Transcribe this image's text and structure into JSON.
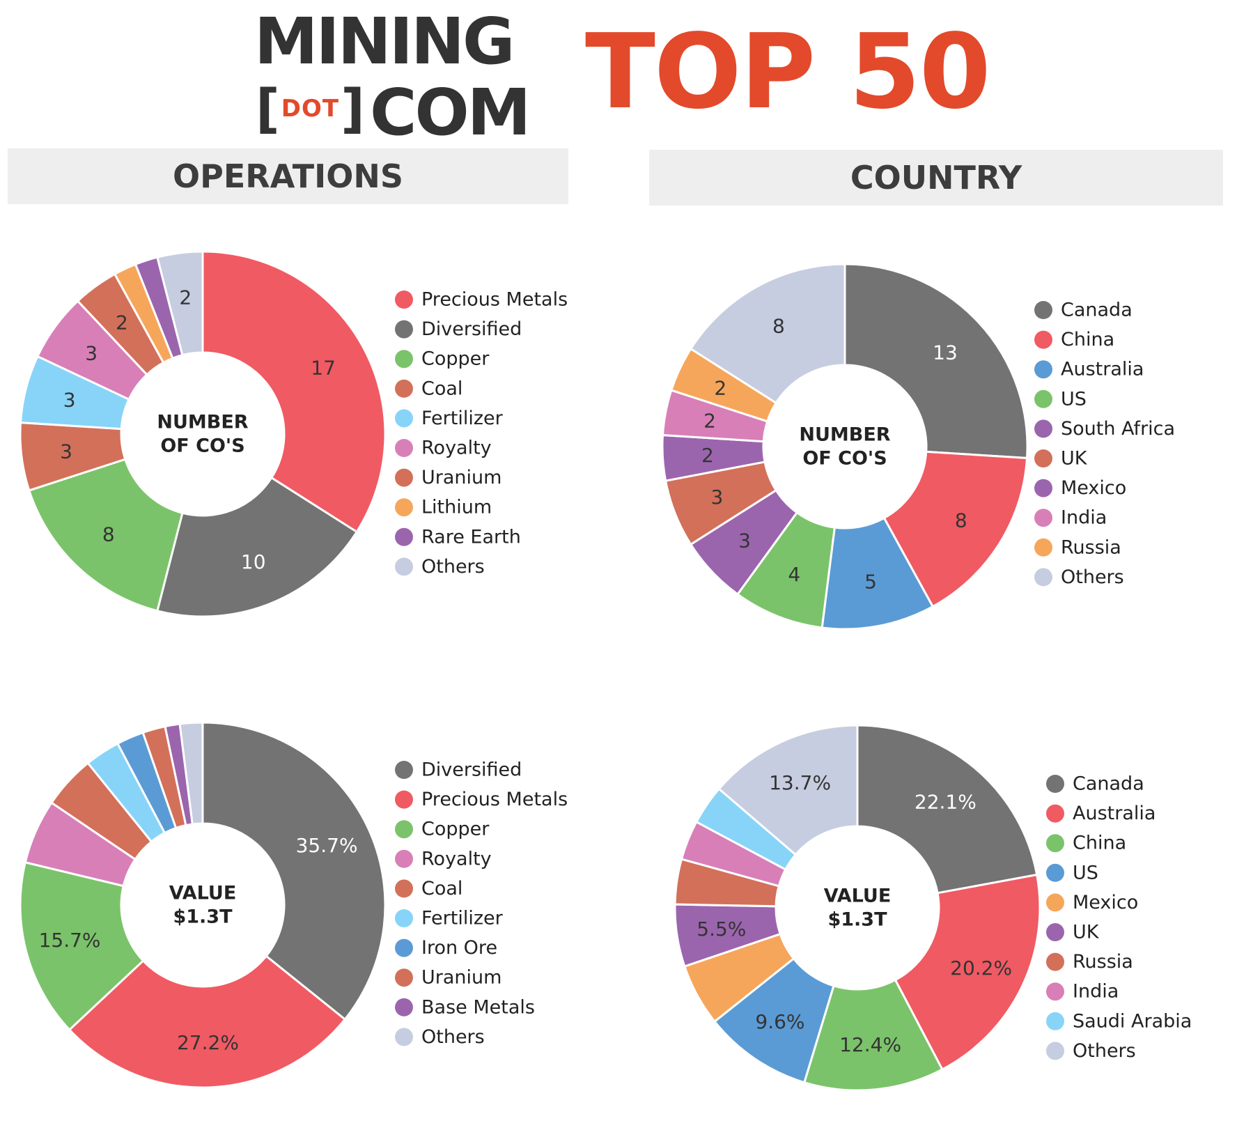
{
  "header": {
    "logo_line1": "MINING",
    "logo_bracket_left": "[",
    "logo_dot": "DOT",
    "logo_bracket_right": "]",
    "logo_line2": "COM",
    "title": "TOP 50"
  },
  "sections": {
    "operations": "OPERATIONS",
    "country": "COUNTRY"
  },
  "chart_data": [
    {
      "type": "pie",
      "style": "donut",
      "center_label": [
        "NUMBER",
        "OF CO'S"
      ],
      "categories": [
        "Precious Metals",
        "Diversified",
        "Copper",
        "Coal",
        "Fertilizer",
        "Royalty",
        "Uranium",
        "Lithium",
        "Rare Earth",
        "Others"
      ],
      "values": [
        17,
        10,
        8,
        3,
        3,
        3,
        2,
        1,
        1,
        2
      ],
      "labels": [
        "17",
        "10",
        "8",
        "3",
        "3",
        "3",
        "2",
        "",
        "",
        "2"
      ],
      "colors": [
        "#f05a63",
        "#737373",
        "#7bc36a",
        "#d3705a",
        "#87d4f8",
        "#d87fb8",
        "#d3705a",
        "#f6a65a",
        "#9b65ae",
        "#c6cde0"
      ],
      "label_colors": [
        "#333333",
        "#ffffff",
        "#333333",
        "#333333",
        "#333333",
        "#333333",
        "#333333",
        "#333333",
        "#333333",
        "#333333"
      ]
    },
    {
      "type": "pie",
      "style": "donut",
      "center_label": [
        "NUMBER",
        "OF CO'S"
      ],
      "categories": [
        "Canada",
        "China",
        "Australia",
        "US",
        "South Africa",
        "UK",
        "Mexico",
        "India",
        "Russia",
        "Others"
      ],
      "values": [
        13,
        8,
        5,
        4,
        3,
        3,
        2,
        2,
        2,
        8
      ],
      "labels": [
        "13",
        "8",
        "5",
        "4",
        "3",
        "3",
        "2",
        "2",
        "2",
        "8"
      ],
      "colors": [
        "#737373",
        "#f05a63",
        "#5b9bd5",
        "#7bc36a",
        "#9b65ae",
        "#d3705a",
        "#9b65ae",
        "#d87fb8",
        "#f6a65a",
        "#c6cde0"
      ],
      "label_colors": [
        "#ffffff",
        "#333333",
        "#333333",
        "#333333",
        "#333333",
        "#333333",
        "#333333",
        "#333333",
        "#333333",
        "#333333"
      ]
    },
    {
      "type": "pie",
      "style": "donut",
      "center_label": [
        "VALUE",
        "$1.3T"
      ],
      "categories": [
        "Diversified",
        "Precious Metals",
        "Copper",
        "Royalty",
        "Coal",
        "Fertilizer",
        "Iron Ore",
        "Uranium",
        "Base Metals",
        "Others"
      ],
      "values": [
        35.7,
        27.2,
        15.7,
        5.7,
        4.7,
        3.1,
        2.4,
        2.0,
        1.3,
        2.0
      ],
      "labels": [
        "35.7%",
        "27.2%",
        "15.7%",
        "",
        "",
        "",
        "",
        "",
        "",
        ""
      ],
      "colors": [
        "#737373",
        "#f05a63",
        "#7bc36a",
        "#d87fb8",
        "#d3705a",
        "#87d4f8",
        "#5b9bd5",
        "#d3705a",
        "#9b65ae",
        "#c6cde0"
      ],
      "label_colors": [
        "#ffffff",
        "#333333",
        "#333333",
        "#333333",
        "#333333",
        "#333333",
        "#333333",
        "#333333",
        "#333333",
        "#333333"
      ]
    },
    {
      "type": "pie",
      "style": "donut",
      "center_label": [
        "VALUE",
        "$1.3T"
      ],
      "categories": [
        "Canada",
        "Australia",
        "China",
        "US",
        "Mexico",
        "UK",
        "Russia",
        "India",
        "Saudi Arabia",
        "Others"
      ],
      "values": [
        22.1,
        20.2,
        12.4,
        9.6,
        5.5,
        5.5,
        4.0,
        3.5,
        3.5,
        13.7
      ],
      "labels": [
        "22.1%",
        "20.2%",
        "12.4%",
        "9.6%",
        "",
        "5.5%",
        "",
        "",
        "",
        "13.7%"
      ],
      "colors": [
        "#737373",
        "#f05a63",
        "#7bc36a",
        "#5b9bd5",
        "#f6a65a",
        "#9b65ae",
        "#d3705a",
        "#d87fb8",
        "#87d4f8",
        "#c6cde0"
      ],
      "label_colors": [
        "#ffffff",
        "#333333",
        "#333333",
        "#333333",
        "#333333",
        "#333333",
        "#333333",
        "#333333",
        "#333333",
        "#333333"
      ]
    }
  ]
}
